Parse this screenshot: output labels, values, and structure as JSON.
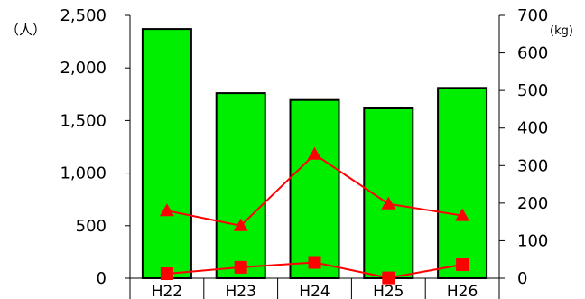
{
  "chart_data": {
    "type": "bar",
    "categories": [
      "H22",
      "H23",
      "H24",
      "H25",
      "H26"
    ],
    "y_left": {
      "unit": "（人）",
      "ticks": [
        "0",
        "500",
        "1,000",
        "1,500",
        "2,000",
        "2,500"
      ],
      "tick_values": [
        0,
        500,
        1000,
        1500,
        2000,
        2500
      ],
      "ylim": [
        0,
        2500
      ]
    },
    "y_right": {
      "unit": "(kg)",
      "ticks": [
        "0",
        "100",
        "200",
        "300",
        "400",
        "500",
        "600",
        "700"
      ],
      "tick_values": [
        0,
        100,
        200,
        300,
        400,
        500,
        600,
        700
      ],
      "ylim": [
        0,
        700
      ]
    },
    "series": [
      {
        "type": "bar",
        "axis": "left",
        "color": "#00ee00",
        "values": [
          2370,
          1760,
          1695,
          1615,
          1810
        ]
      },
      {
        "type": "line",
        "axis": "right",
        "marker": "triangle",
        "color": "#ff0000",
        "values": [
          180,
          140,
          330,
          198,
          167
        ]
      },
      {
        "type": "line",
        "axis": "right",
        "marker": "square",
        "color": "#ff0000",
        "values": [
          12,
          29,
          42,
          1,
          36
        ]
      }
    ],
    "grid": false,
    "legend": "none"
  }
}
